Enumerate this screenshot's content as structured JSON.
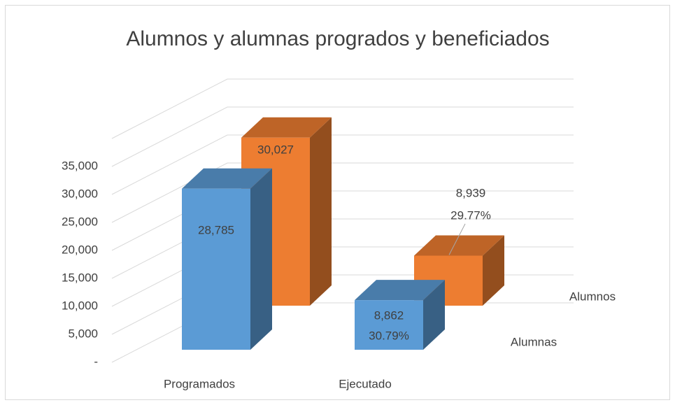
{
  "chart_data": {
    "type": "bar3d",
    "title": "Alumnos y alumnas progrados y beneficiados",
    "categories": [
      "Programados",
      "Ejecutado"
    ],
    "series": [
      {
        "name": "Alumnas",
        "color": "#5b9bd5",
        "values": [
          28785,
          8862
        ],
        "value_labels": [
          "28,785",
          "8,862"
        ],
        "percent_label": "30.79%"
      },
      {
        "name": "Alumnos",
        "color": "#ed7d31",
        "values": [
          30027,
          8939
        ],
        "value_labels": [
          "30,027",
          "8,939"
        ],
        "percent_label": "29.77%"
      }
    ],
    "ylim": [
      0,
      40000
    ],
    "yticks": [
      {
        "value": 0,
        "label": "-"
      },
      {
        "value": 5000,
        "label": "5,000"
      },
      {
        "value": 10000,
        "label": "10,000"
      },
      {
        "value": 15000,
        "label": "15,000"
      },
      {
        "value": 20000,
        "label": "20,000"
      },
      {
        "value": 25000,
        "label": "25,000"
      },
      {
        "value": 30000,
        "label": "30,000"
      },
      {
        "value": 35000,
        "label": "35,000"
      }
    ],
    "grid": true
  }
}
